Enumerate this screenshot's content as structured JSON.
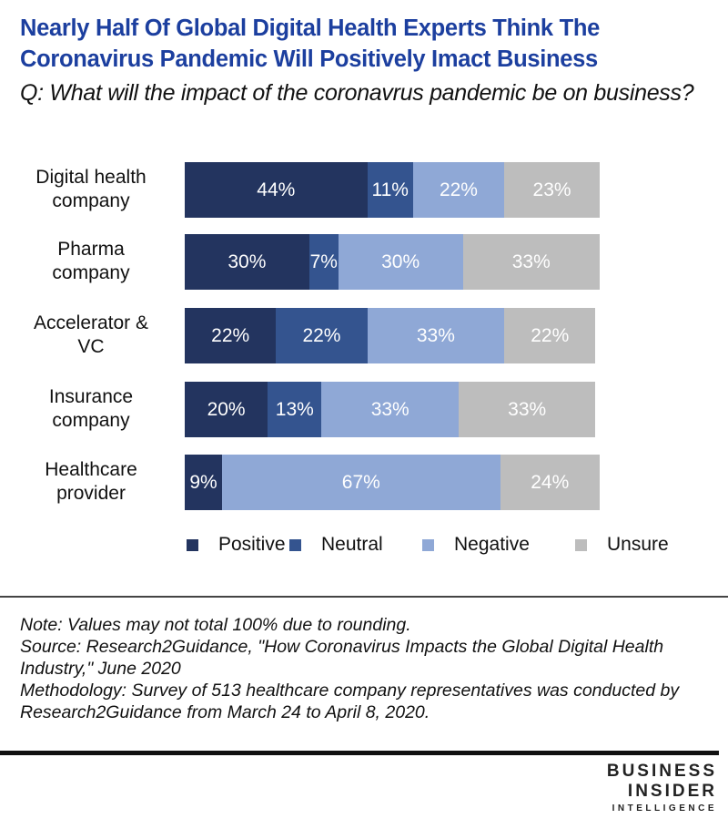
{
  "chart_data": {
    "type": "bar",
    "orientation": "horizontal-stacked",
    "title": "Nearly Half Of Global Digital Health Experts Think The Coronavirus Pandemic Will Positively Imact Business",
    "subtitle": "Q: What will the impact of the coronavrus pandemic be on business?",
    "categories": [
      [
        "Digital health",
        "company"
      ],
      [
        "Pharma",
        "company"
      ],
      [
        "Accelerator &",
        "VC"
      ],
      [
        "Insurance",
        "company"
      ],
      [
        "Healthcare",
        "provider"
      ]
    ],
    "series": [
      {
        "name": "Positive",
        "color": "#23345f",
        "values": [
          44,
          30,
          22,
          20,
          9
        ]
      },
      {
        "name": "Neutral",
        "color": "#34548f",
        "values": [
          11,
          7,
          22,
          13,
          0
        ]
      },
      {
        "name": "Negative",
        "color": "#8fa8d6",
        "values": [
          22,
          30,
          33,
          33,
          67
        ]
      },
      {
        "name": "Unsure",
        "color": "#bdbdbd",
        "values": [
          23,
          33,
          22,
          33,
          24
        ]
      }
    ],
    "legend_position": "bottom",
    "xlim": [
      0,
      100
    ]
  },
  "notes": [
    "Note: Values may not total 100% due to rounding.",
    "Source: Research2Guidance, \"How Coronavirus Impacts the Global Digital Health Industry,\" June 2020",
    "Methodology: Survey of 513 healthcare company representatives was conducted by Research2Guidance from March 24 to April 8, 2020."
  ],
  "logo": {
    "line1": "BUSINESS",
    "line2": "INSIDER",
    "line3": "INTELLIGENCE"
  }
}
